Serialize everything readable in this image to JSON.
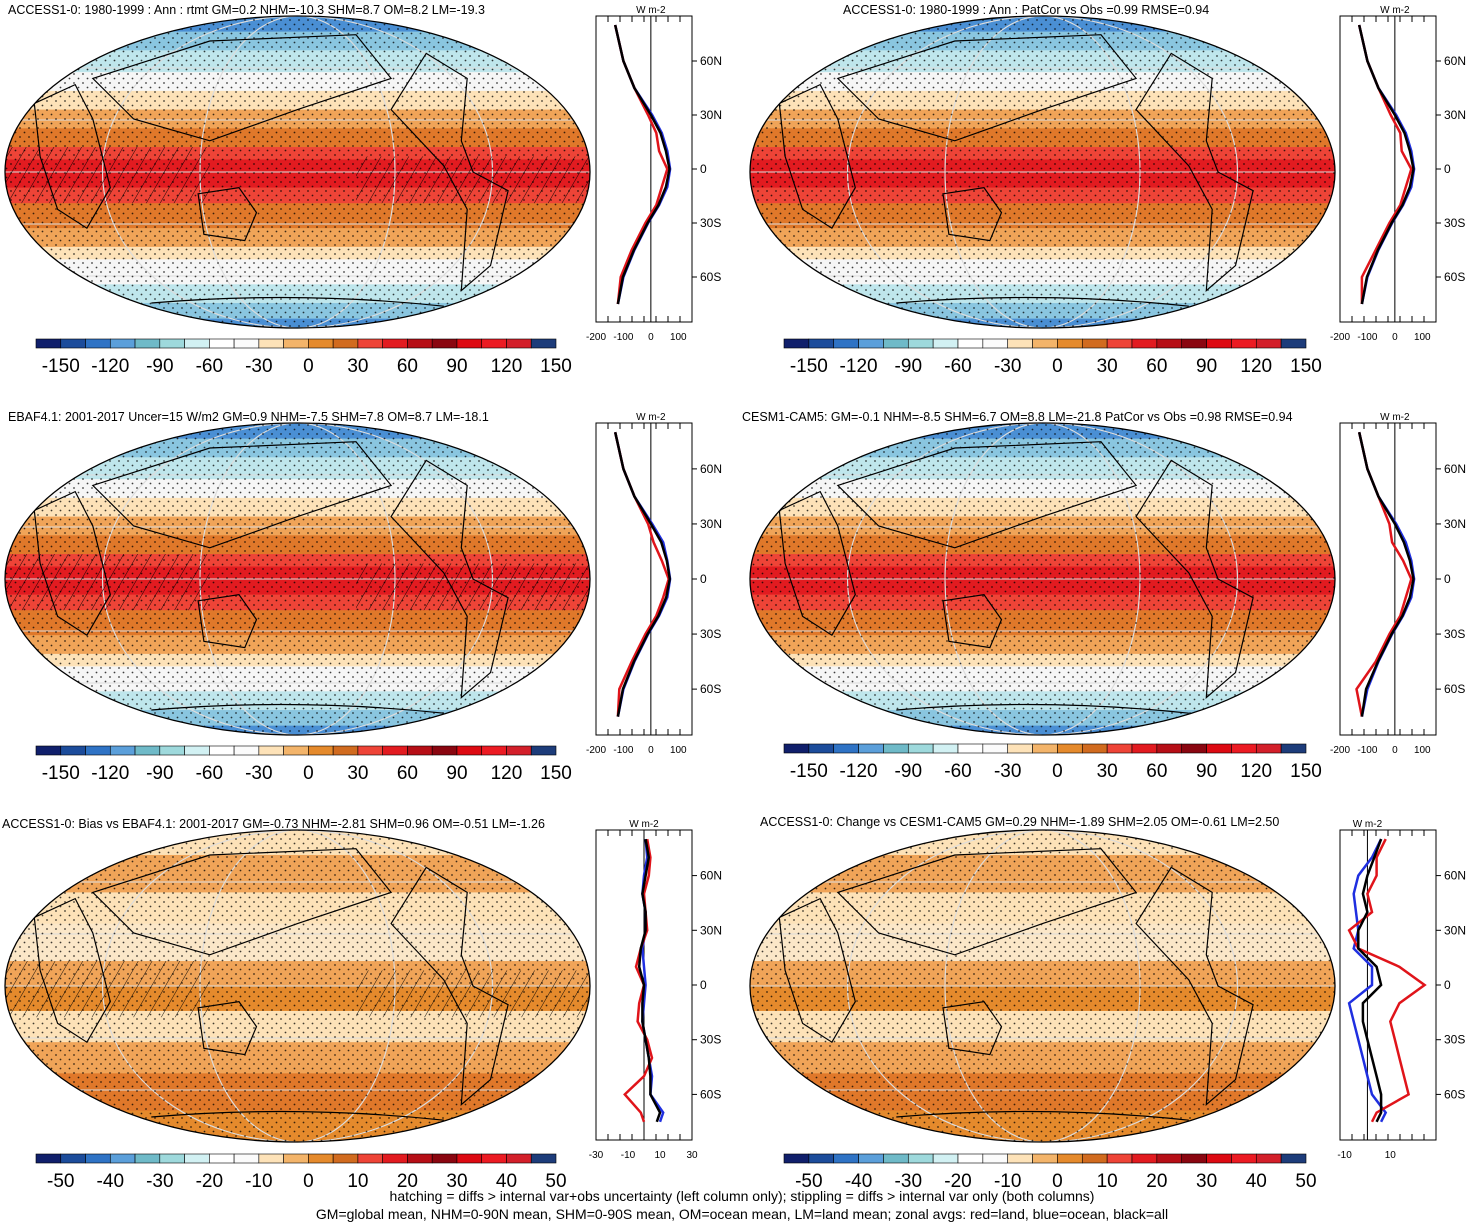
{
  "chart_data": [
    {
      "type": "heatmap",
      "title": "ACCESS1-0: 1980-1999 : Ann : rtmt GM=0.2 NHM=-10.3 SHM=8.7 OM=8.2 LM=-19.3",
      "colorbar": {
        "ticks": [
          "-150",
          "-120",
          "-90",
          "-60",
          "-30",
          "0",
          "30",
          "60",
          "90",
          "120",
          "150"
        ]
      },
      "zonal": {
        "unit": "W m-2",
        "xticks": [
          "-200",
          "-100",
          "0",
          "100"
        ],
        "xlim": [
          -200,
          150
        ],
        "lat_ticks": [
          "60N",
          "30N",
          "0",
          "30S",
          "60S"
        ],
        "lat": [
          80,
          60,
          45,
          30,
          20,
          10,
          0,
          -10,
          -20,
          -30,
          -45,
          -60,
          -75
        ],
        "land": [
          -130,
          -100,
          -60,
          -10,
          20,
          30,
          60,
          40,
          20,
          -20,
          -70,
          -110,
          -120
        ],
        "ocean": [
          -130,
          -100,
          -60,
          5,
          40,
          60,
          70,
          60,
          30,
          -10,
          -60,
          -100,
          -120
        ],
        "all": [
          -130,
          -100,
          -60,
          0,
          35,
          55,
          68,
          55,
          28,
          -12,
          -62,
          -102,
          -120
        ]
      }
    },
    {
      "type": "heatmap",
      "title": "ACCESS1-0: 1980-1999 : Ann : PatCor vs Obs =0.99 RMSE=0.94",
      "colorbar": {
        "ticks": [
          "-150",
          "-120",
          "-90",
          "-60",
          "-30",
          "0",
          "30",
          "60",
          "90",
          "120",
          "150"
        ]
      },
      "zonal": {
        "unit": "W m-2",
        "xticks": [
          "-200",
          "-100",
          "0",
          "100"
        ],
        "xlim": [
          -200,
          150
        ],
        "lat_ticks": [
          "60N",
          "30N",
          "0",
          "30S",
          "60S"
        ],
        "lat": [
          80,
          60,
          45,
          30,
          20,
          10,
          0,
          -10,
          -20,
          -30,
          -45,
          -60,
          -75
        ],
        "land": [
          -130,
          -100,
          -60,
          -15,
          20,
          25,
          60,
          40,
          20,
          -20,
          -70,
          -120,
          -120
        ],
        "ocean": [
          -130,
          -100,
          -60,
          5,
          40,
          60,
          70,
          60,
          30,
          -10,
          -60,
          -100,
          -120
        ],
        "all": [
          -130,
          -100,
          -60,
          0,
          35,
          55,
          68,
          55,
          28,
          -12,
          -62,
          -102,
          -120
        ]
      }
    },
    {
      "type": "heatmap",
      "title": "EBAF4.1: 2001-2017 Uncer=15 W/m2 GM=0.9 NHM=-7.5 SHM=7.8 OM=8.7 LM=-18.1",
      "colorbar": {
        "ticks": [
          "-150",
          "-120",
          "-90",
          "-60",
          "-30",
          "0",
          "30",
          "60",
          "90",
          "120",
          "150"
        ]
      },
      "zonal": {
        "unit": "W m-2",
        "xticks": [
          "-200",
          "-100",
          "0",
          "100"
        ],
        "xlim": [
          -200,
          150
        ],
        "lat_ticks": [
          "60N",
          "30N",
          "0",
          "30S",
          "60S"
        ],
        "lat": [
          80,
          60,
          45,
          30,
          20,
          10,
          0,
          -10,
          -20,
          -30,
          -45,
          -60,
          -75
        ],
        "land": [
          -130,
          -100,
          -60,
          -10,
          10,
          40,
          65,
          45,
          20,
          -20,
          -70,
          -115,
          -120
        ],
        "ocean": [
          -130,
          -100,
          -60,
          5,
          45,
          60,
          70,
          60,
          30,
          -10,
          -60,
          -100,
          -120
        ],
        "all": [
          -130,
          -100,
          -60,
          0,
          38,
          58,
          69,
          56,
          28,
          -12,
          -62,
          -102,
          -120
        ]
      }
    },
    {
      "type": "heatmap",
      "title": "CESM1-CAM5: GM=-0.1 NHM=-8.5 SHM=6.7 OM=8.8 LM=-21.8 PatCor vs Obs =0.98 RMSE=0.94",
      "colorbar": {
        "ticks": [
          "-150",
          "-120",
          "-90",
          "-60",
          "-30",
          "0",
          "30",
          "60",
          "90",
          "120",
          "150"
        ]
      },
      "zonal": {
        "unit": "W m-2",
        "xticks": [
          "-200",
          "-100",
          "0",
          "100"
        ],
        "xlim": [
          -200,
          150
        ],
        "lat_ticks": [
          "60N",
          "30N",
          "0",
          "30S",
          "60S"
        ],
        "lat": [
          80,
          60,
          45,
          30,
          20,
          10,
          0,
          -10,
          -20,
          -30,
          -45,
          -60,
          -75
        ],
        "land": [
          -130,
          -100,
          -60,
          -20,
          -10,
          30,
          60,
          40,
          20,
          -20,
          -70,
          -140,
          -120
        ],
        "ocean": [
          -130,
          -100,
          -60,
          5,
          40,
          60,
          70,
          60,
          30,
          -10,
          -60,
          -100,
          -120
        ],
        "all": [
          -130,
          -100,
          -60,
          0,
          33,
          55,
          68,
          55,
          28,
          -12,
          -62,
          -105,
          -120
        ]
      }
    },
    {
      "type": "heatmap",
      "title": "ACCESS1-0: Bias vs EBAF4.1: 2001-2017 GM=-0.73 NHM=-2.81 SHM=0.96 OM=-0.51 LM=-1.26",
      "colorbar": {
        "ticks": [
          "-50",
          "-40",
          "-30",
          "-20",
          "-10",
          "0",
          "10",
          "20",
          "30",
          "40",
          "50"
        ]
      },
      "zonal": {
        "unit": "W m-2",
        "xticks": [
          "-30",
          "-10",
          "10",
          "30"
        ],
        "xlim": [
          -30,
          30
        ],
        "lat_ticks": [
          "60N",
          "30N",
          "0",
          "30S",
          "60S"
        ],
        "lat": [
          80,
          70,
          60,
          50,
          40,
          30,
          20,
          10,
          0,
          -10,
          -20,
          -30,
          -40,
          -50,
          -60,
          -70,
          -75
        ],
        "land": [
          2,
          4,
          3,
          0,
          1,
          2,
          -2,
          -5,
          0,
          -3,
          -4,
          2,
          5,
          0,
          -12,
          -2,
          0
        ],
        "ocean": [
          1,
          2,
          0,
          -1,
          1,
          1,
          -1,
          0,
          1,
          0,
          -1,
          1,
          3,
          5,
          4,
          12,
          10
        ],
        "all": [
          1,
          3,
          1,
          -1,
          1,
          1,
          -2,
          -3,
          0,
          -1,
          -1,
          1,
          3,
          4,
          4,
          10,
          8
        ]
      }
    },
    {
      "type": "heatmap",
      "title": "ACCESS1-0: Change vs CESM1-CAM5 GM=0.29 NHM=-1.89 SHM=2.05 OM=-0.61 LM=2.50",
      "colorbar": {
        "ticks": [
          "-50",
          "-40",
          "-30",
          "-20",
          "-10",
          "0",
          "10",
          "20",
          "30",
          "40",
          "50"
        ]
      },
      "zonal": {
        "unit": "W m-2",
        "xticks": [
          "-10",
          "10"
        ],
        "xlim": [
          -12,
          30
        ],
        "lat_ticks": [
          "60N",
          "30N",
          "0",
          "30S",
          "60S"
        ],
        "lat": [
          80,
          70,
          60,
          50,
          40,
          30,
          20,
          10,
          0,
          -10,
          -20,
          -30,
          -40,
          -50,
          -60,
          -70,
          -75
        ],
        "land": [
          8,
          4,
          4,
          0,
          2,
          -8,
          -4,
          14,
          25,
          14,
          10,
          12,
          14,
          16,
          18,
          4,
          2
        ],
        "ocean": [
          6,
          2,
          -4,
          -6,
          -5,
          -4,
          -6,
          2,
          2,
          -8,
          -6,
          -4,
          -2,
          0,
          2,
          8,
          6
        ],
        "all": [
          6,
          3,
          0,
          -2,
          0,
          -4,
          -4,
          4,
          6,
          -2,
          -2,
          0,
          2,
          4,
          6,
          6,
          4
        ]
      }
    }
  ],
  "footer": {
    "line1": "hatching = diffs > internal var+obs uncertainty (left column only); stippling = diffs > internal var only (both columns)",
    "line2": "GM=global mean, NHM=0-90N mean, SHM=0-90S mean, OM=ocean mean, LM=land mean; zonal avgs: red=land, blue=ocean, black=all"
  }
}
